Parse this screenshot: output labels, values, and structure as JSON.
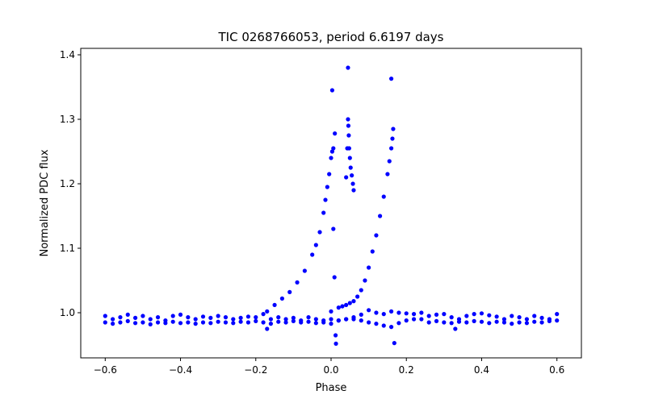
{
  "chart_data": {
    "type": "scatter",
    "title": "TIC 0268766053, period 6.6197 days",
    "xlabel": "Phase",
    "ylabel": "Normalized PDC flux",
    "xlim": [
      -0.665,
      0.665
    ],
    "ylim": [
      0.93,
      1.41
    ],
    "x_ticks": [
      -0.6,
      -0.4,
      -0.2,
      0.0,
      0.2,
      0.4,
      0.6
    ],
    "x_tick_labels": [
      "−0.6",
      "−0.4",
      "−0.2",
      "0.0",
      "0.2",
      "0.4",
      "0.6"
    ],
    "y_ticks": [
      1.0,
      1.1,
      1.2,
      1.3,
      1.4
    ],
    "y_tick_labels": [
      "1.0",
      "1.1",
      "1.2",
      "1.3",
      "1.4"
    ],
    "grid": false,
    "series": [
      {
        "name": "flux",
        "color": "#0000ff",
        "x": [
          -0.6,
          -0.58,
          -0.56,
          -0.54,
          -0.52,
          -0.5,
          -0.48,
          -0.46,
          -0.44,
          -0.42,
          -0.4,
          -0.38,
          -0.36,
          -0.34,
          -0.32,
          -0.3,
          -0.28,
          -0.26,
          -0.24,
          -0.22,
          -0.2,
          -0.18,
          -0.17,
          -0.16,
          -0.14,
          -0.12,
          -0.1,
          -0.08,
          -0.06,
          -0.04,
          -0.02,
          0.0,
          0.02,
          0.04,
          0.06,
          0.08,
          0.1,
          0.12,
          0.14,
          0.16,
          0.18,
          0.2,
          0.22,
          0.24,
          0.26,
          0.28,
          0.3,
          0.32,
          0.33,
          0.34,
          0.36,
          0.38,
          0.4,
          0.42,
          0.44,
          0.46,
          0.48,
          0.5,
          0.52,
          0.54,
          0.56,
          0.58,
          0.6,
          -0.6,
          -0.58,
          -0.56,
          -0.54,
          -0.52,
          -0.5,
          -0.48,
          -0.46,
          -0.44,
          -0.42,
          -0.4,
          -0.38,
          -0.36,
          -0.34,
          -0.32,
          -0.3,
          -0.28,
          -0.26,
          -0.24,
          -0.22,
          -0.2,
          -0.18,
          -0.16,
          -0.14,
          -0.12,
          -0.1,
          -0.08,
          -0.06,
          -0.04,
          -0.02,
          0.0,
          0.02,
          0.04,
          0.06,
          0.08,
          0.1,
          0.12,
          0.14,
          0.16,
          0.18,
          0.2,
          0.22,
          0.24,
          0.26,
          0.28,
          0.3,
          0.32,
          0.34,
          0.36,
          0.38,
          0.4,
          0.42,
          0.44,
          0.46,
          0.48,
          0.5,
          0.52,
          0.54,
          0.56,
          0.58,
          0.6,
          -0.17,
          -0.15,
          -0.13,
          -0.11,
          -0.09,
          -0.07,
          -0.05,
          -0.04,
          -0.03,
          -0.02,
          -0.015,
          -0.01,
          -0.005,
          0.0,
          0.003,
          0.006,
          0.01,
          0.0,
          0.02,
          0.03,
          0.04,
          0.05,
          0.06,
          0.07,
          0.08,
          0.09,
          0.1,
          0.11,
          0.12,
          0.13,
          0.14,
          0.15,
          0.155,
          0.16,
          0.163,
          0.165,
          0.04,
          0.043,
          0.045,
          0.046,
          0.047,
          0.048,
          0.05,
          0.052,
          0.055,
          0.058,
          0.06,
          0.003,
          0.006,
          0.009,
          0.012,
          0.013,
          0.168,
          0.045,
          0.16
        ],
        "y": [
          0.995,
          0.99,
          0.993,
          0.997,
          0.992,
          0.995,
          0.99,
          0.993,
          0.988,
          0.995,
          0.997,
          0.993,
          0.99,
          0.994,
          0.992,
          0.995,
          0.993,
          0.99,
          0.992,
          0.994,
          0.993,
          0.998,
          0.975,
          0.99,
          0.993,
          0.99,
          0.992,
          0.988,
          0.993,
          0.99,
          0.988,
          0.99,
          0.988,
          0.99,
          0.993,
          0.997,
          1.004,
          1.0,
          0.998,
          1.002,
          1.0,
          0.999,
          0.998,
          1.0,
          0.995,
          0.997,
          0.998,
          0.993,
          0.975,
          0.99,
          0.995,
          0.998,
          0.999,
          0.996,
          0.994,
          0.99,
          0.995,
          0.993,
          0.99,
          0.995,
          0.992,
          0.99,
          0.998,
          0.985,
          0.983,
          0.985,
          0.987,
          0.984,
          0.985,
          0.982,
          0.985,
          0.984,
          0.986,
          0.984,
          0.985,
          0.983,
          0.985,
          0.984,
          0.986,
          0.985,
          0.984,
          0.986,
          0.985,
          0.987,
          0.985,
          0.983,
          0.986,
          0.985,
          0.987,
          0.985,
          0.986,
          0.984,
          0.985,
          0.983,
          0.988,
          0.99,
          0.99,
          0.988,
          0.985,
          0.983,
          0.98,
          0.978,
          0.984,
          0.988,
          0.99,
          0.99,
          0.985,
          0.987,
          0.985,
          0.984,
          0.986,
          0.985,
          0.987,
          0.986,
          0.984,
          0.986,
          0.985,
          0.983,
          0.985,
          0.984,
          0.986,
          0.985,
          0.987,
          0.988,
          1.002,
          1.012,
          1.022,
          1.032,
          1.047,
          1.065,
          1.09,
          1.105,
          1.125,
          1.155,
          1.175,
          1.195,
          1.215,
          1.24,
          1.25,
          1.255,
          1.278,
          1.002,
          1.008,
          1.01,
          1.012,
          1.015,
          1.018,
          1.025,
          1.035,
          1.05,
          1.07,
          1.095,
          1.12,
          1.15,
          1.18,
          1.215,
          1.235,
          1.255,
          1.27,
          1.285,
          1.21,
          1.255,
          1.3,
          1.29,
          1.275,
          1.255,
          1.24,
          1.225,
          1.213,
          1.2,
          1.19,
          1.345,
          1.13,
          1.055,
          0.965,
          0.952,
          0.953,
          1.38,
          1.363
        ]
      }
    ]
  }
}
